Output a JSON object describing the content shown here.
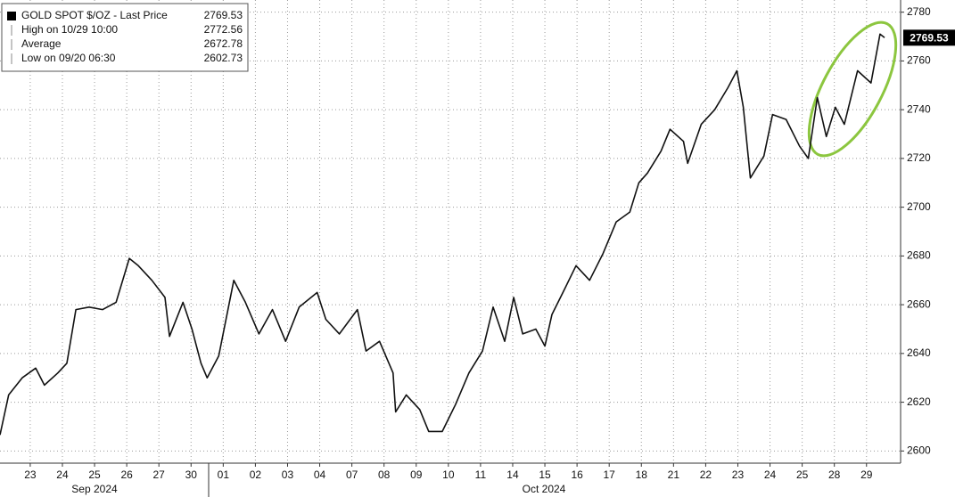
{
  "chart_data": {
    "type": "line",
    "legend_items": [
      {
        "label": "GOLD SPOT $/OZ - Last Price",
        "value": 2769.53
      },
      {
        "label": "High on 10/29 10:00",
        "value": 2772.56
      },
      {
        "label": "Average",
        "value": 2672.78
      },
      {
        "label": "Low on 09/20 06:30",
        "value": 2602.73
      }
    ],
    "last_price": 2769.53,
    "x_groups": [
      "Sep 2024",
      "Oct 2024"
    ],
    "xlim": [
      -0.44,
      27.56
    ],
    "xticks": [
      {
        "value": 0.5,
        "label": "23"
      },
      {
        "value": 1.5,
        "label": "24"
      },
      {
        "value": 2.5,
        "label": "25"
      },
      {
        "value": 3.5,
        "label": "26"
      },
      {
        "value": 4.5,
        "label": "27"
      },
      {
        "value": 5.5,
        "label": "30"
      },
      {
        "value": 6.5,
        "label": "01"
      },
      {
        "value": 7.5,
        "label": "02"
      },
      {
        "value": 8.5,
        "label": "03"
      },
      {
        "value": 9.5,
        "label": "04"
      },
      {
        "value": 10.5,
        "label": "07"
      },
      {
        "value": 11.5,
        "label": "08"
      },
      {
        "value": 12.5,
        "label": "09"
      },
      {
        "value": 13.5,
        "label": "10"
      },
      {
        "value": 14.5,
        "label": "11"
      },
      {
        "value": 15.5,
        "label": "14"
      },
      {
        "value": 16.5,
        "label": "15"
      },
      {
        "value": 17.5,
        "label": "16"
      },
      {
        "value": 18.5,
        "label": "17"
      },
      {
        "value": 19.5,
        "label": "18"
      },
      {
        "value": 20.5,
        "label": "21"
      },
      {
        "value": 21.5,
        "label": "22"
      },
      {
        "value": 22.5,
        "label": "23"
      },
      {
        "value": 23.5,
        "label": "24"
      },
      {
        "value": 24.5,
        "label": "25"
      },
      {
        "value": 25.5,
        "label": "28"
      },
      {
        "value": 26.5,
        "label": "29"
      }
    ],
    "ylim": [
      2595,
      2785
    ],
    "yticks": [
      2600,
      2620,
      2640,
      2660,
      2680,
      2700,
      2720,
      2740,
      2760,
      2780
    ],
    "grid": true,
    "series": [
      {
        "color": "#111111",
        "x": [
          -0.44,
          -0.17,
          0.25,
          0.67,
          0.94,
          1.36,
          1.64,
          1.92,
          2.33,
          2.75,
          3.17,
          3.58,
          3.86,
          4.28,
          4.69,
          4.83,
          5.25,
          5.53,
          5.81,
          6.0,
          6.36,
          6.83,
          7.19,
          7.61,
          8.03,
          8.44,
          8.86,
          9.42,
          9.69,
          10.11,
          10.67,
          10.94,
          11.36,
          11.78,
          11.86,
          12.19,
          12.61,
          12.89,
          13.31,
          13.72,
          14.14,
          14.56,
          14.89,
          15.25,
          15.53,
          15.81,
          16.22,
          16.5,
          16.72,
          17.06,
          17.47,
          17.89,
          18.31,
          18.72,
          19.14,
          19.42,
          19.69,
          20.11,
          20.39,
          20.81,
          20.94,
          21.36,
          21.78,
          22.19,
          22.47,
          22.67,
          22.89,
          23.31,
          23.58,
          24.0,
          24.42,
          24.69,
          24.97,
          25.25,
          25.53,
          25.81,
          26.22,
          26.64,
          26.92,
          27.06
        ],
        "values": [
          2606.6,
          2623,
          2630,
          2634,
          2627,
          2632,
          2636,
          2658,
          2659,
          2658,
          2661,
          2679,
          2676,
          2670,
          2663,
          2647,
          2661,
          2650,
          2636,
          2630,
          2639,
          2670,
          2661,
          2648,
          2658,
          2645,
          2659,
          2665,
          2654,
          2648,
          2658,
          2641,
          2645,
          2632,
          2616,
          2623,
          2617,
          2608,
          2608,
          2619,
          2632,
          2641,
          2659,
          2645,
          2663,
          2648,
          2650,
          2643,
          2656,
          2665,
          2676,
          2670,
          2681,
          2694,
          2698,
          2710,
          2714,
          2723,
          2732,
          2727,
          2718,
          2734,
          2740,
          2749,
          2756,
          2741,
          2712,
          2721,
          2738,
          2736,
          2725,
          2720,
          2745,
          2729,
          2741,
          2734,
          2756,
          2751,
          2771,
          2769.53
        ]
      }
    ]
  }
}
